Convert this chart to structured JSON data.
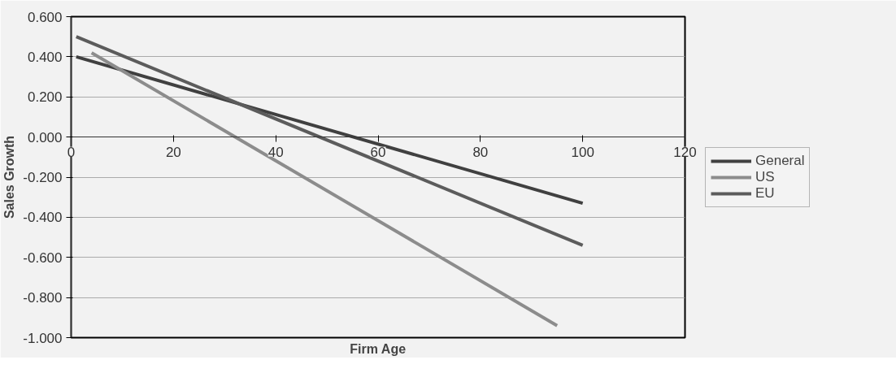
{
  "chart_data": {
    "type": "line",
    "xlabel": "Firm Age",
    "ylabel": "Sales Growth",
    "xlim": [
      0,
      120
    ],
    "xticks": [
      0,
      20,
      40,
      60,
      80,
      100,
      120
    ],
    "ylim": [
      -1.0,
      0.6
    ],
    "yticks": [
      {
        "value": 0.6,
        "label": "0.600"
      },
      {
        "value": 0.4,
        "label": "0.400"
      },
      {
        "value": 0.2,
        "label": "0.200"
      },
      {
        "value": 0,
        "label": "0.000"
      },
      {
        "value": -0.2,
        "label": "-0.200"
      },
      {
        "value": -0.4,
        "label": "-0.400"
      },
      {
        "value": -0.6,
        "label": "-0.600"
      },
      {
        "value": -0.8,
        "label": "-0.800"
      },
      {
        "value": -1.0,
        "label": "-1.000"
      }
    ],
    "grid": "y",
    "legend": "right",
    "marker": "none",
    "line_style": "solid",
    "series": [
      {
        "name": "General",
        "color": "#404040",
        "x": [
          1,
          100
        ],
        "values": [
          0.4,
          -0.33
        ]
      },
      {
        "name": "US",
        "color": "#8c8c8c",
        "x": [
          4,
          95
        ],
        "values": [
          0.42,
          -0.94
        ]
      },
      {
        "name": "EU",
        "color": "#5c5c5c",
        "x": [
          1,
          100
        ],
        "values": [
          0.5,
          -0.54
        ]
      }
    ]
  }
}
